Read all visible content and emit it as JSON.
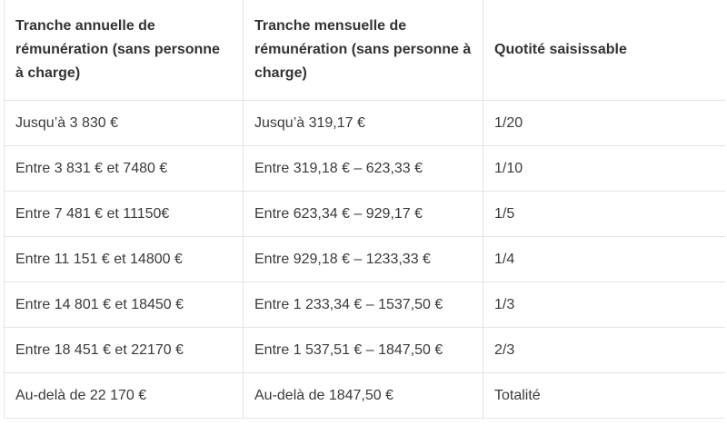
{
  "table": {
    "headers": [
      "Tranche annuelle de rémunération (sans personne à charge)",
      "Tranche mensuelle de rémunération (sans personne à charge)",
      "Quotité saisissable"
    ],
    "rows": [
      [
        "Jusqu’à 3 830 €",
        "Jusqu’à 319,17 €",
        "1/20"
      ],
      [
        "Entre 3 831 € et 7480 €",
        "Entre 319,18 € – 623,33 €",
        "1/10"
      ],
      [
        "Entre 7 481 € et 11150€",
        "Entre 623,34 € – 929,17 €",
        "1/5"
      ],
      [
        "Entre 11 151 € et 14800 €",
        "Entre 929,18 € – 1233,33 €",
        "1/4"
      ],
      [
        "Entre 14 801 € et 18450 €",
        "Entre 1 233,34 € – 1537,50 €",
        "1/3"
      ],
      [
        "Entre 18 451 € et 22170 €",
        "Entre 1 537,51 € – 1847,50 €",
        "2/3"
      ],
      [
        "Au-delà de 22 170 €",
        "Au-delà de 1847,50 €",
        "Totalité"
      ]
    ]
  }
}
